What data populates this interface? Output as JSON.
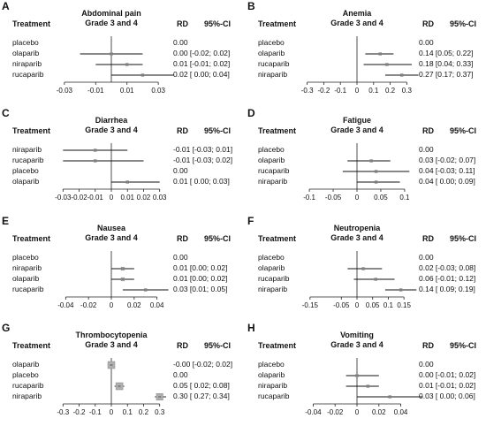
{
  "header": {
    "treatment": "Treatment",
    "rd": "RD",
    "ci": "95%-CI"
  },
  "panels": [
    {
      "letter": "A",
      "title1": "Abdominal pain",
      "title2": "Grade 3 and 4",
      "ticks": [
        "-0.03",
        "-0.01",
        "0.01",
        "0.03"
      ],
      "chart_data": {
        "type": "forest",
        "xlim": [
          -0.035,
          0.035
        ],
        "tick_values": [
          -0.03,
          -0.01,
          0.01,
          0.03
        ],
        "rows": [
          {
            "name": "placebo",
            "rd": 0.0,
            "lo": 0.0,
            "hi": 0.0,
            "text": "0.00"
          },
          {
            "name": "olaparib",
            "rd": 0.0,
            "lo": -0.02,
            "hi": 0.02,
            "text": "0.00 [-0.02; 0.02]"
          },
          {
            "name": "niraparib",
            "rd": 0.01,
            "lo": -0.01,
            "hi": 0.02,
            "text": "0.01 [-0.01; 0.02]"
          },
          {
            "name": "rucaparib",
            "rd": 0.02,
            "lo": 0.0,
            "hi": 0.04,
            "text": "0.02 [ 0.00; 0.04]"
          }
        ]
      }
    },
    {
      "letter": "B",
      "title1": "Anemia",
      "title2": "Grade 3 and 4",
      "ticks": [
        "-0.3",
        "-0.2",
        "-0.1",
        "0",
        "0.1",
        "0.2",
        "0.3"
      ],
      "chart_data": {
        "type": "forest",
        "xlim": [
          -0.33,
          0.33
        ],
        "tick_values": [
          -0.3,
          -0.2,
          -0.1,
          0,
          0.1,
          0.2,
          0.3
        ],
        "rows": [
          {
            "name": "placebo",
            "rd": 0.0,
            "lo": 0.0,
            "hi": 0.0,
            "text": "0.00"
          },
          {
            "name": "olaparib",
            "rd": 0.14,
            "lo": 0.05,
            "hi": 0.22,
            "text": "0.14 [0.05; 0.22]"
          },
          {
            "name": "rucaparib",
            "rd": 0.18,
            "lo": 0.04,
            "hi": 0.33,
            "text": "0.18 [0.04; 0.33]"
          },
          {
            "name": "niraparib",
            "rd": 0.27,
            "lo": 0.17,
            "hi": 0.37,
            "text": "0.27 [0.17; 0.37]"
          }
        ]
      }
    },
    {
      "letter": "C",
      "title1": "Diarrhea",
      "title2": "Grade 3 and 4",
      "ticks": [
        "-0.03",
        "-0.02",
        "-0.01",
        "0",
        "0.01",
        "0.02",
        "0.03"
      ],
      "chart_data": {
        "type": "forest",
        "xlim": [
          -0.034,
          0.034
        ],
        "tick_values": [
          -0.03,
          -0.02,
          -0.01,
          0,
          0.01,
          0.02,
          0.03
        ],
        "rows": [
          {
            "name": "niraparib",
            "rd": -0.01,
            "lo": -0.03,
            "hi": 0.01,
            "text": "-0.01 [-0.03; 0.01]"
          },
          {
            "name": "rucaparib",
            "rd": -0.01,
            "lo": -0.03,
            "hi": 0.02,
            "text": "-0.01 [-0.03; 0.02]"
          },
          {
            "name": "placebo",
            "rd": 0.0,
            "lo": 0.0,
            "hi": 0.0,
            "text": "0.00"
          },
          {
            "name": "olaparib",
            "rd": 0.01,
            "lo": 0.0,
            "hi": 0.03,
            "text": "0.01 [ 0.00; 0.03]"
          }
        ]
      }
    },
    {
      "letter": "D",
      "title1": "Fatigue",
      "title2": "Grade 3 and 4",
      "ticks": [
        "-0.1",
        "-0.05",
        "0",
        "0.05",
        "0.1"
      ],
      "chart_data": {
        "type": "forest",
        "xlim": [
          -0.115,
          0.115
        ],
        "tick_values": [
          -0.1,
          -0.05,
          0,
          0.05,
          0.1
        ],
        "rows": [
          {
            "name": "placebo",
            "rd": 0.0,
            "lo": 0.0,
            "hi": 0.0,
            "text": "0.00"
          },
          {
            "name": "olaparib",
            "rd": 0.03,
            "lo": -0.02,
            "hi": 0.07,
            "text": "0.03 [-0.02; 0.07]"
          },
          {
            "name": "rucaparib",
            "rd": 0.04,
            "lo": -0.03,
            "hi": 0.11,
            "text": "0.04 [-0.03; 0.11]"
          },
          {
            "name": "niraparib",
            "rd": 0.04,
            "lo": 0.0,
            "hi": 0.09,
            "text": "0.04 [ 0.00; 0.09]"
          }
        ]
      }
    },
    {
      "letter": "E",
      "title1": "Nausea",
      "title2": "Grade 3 and 4",
      "ticks": [
        "-0.04",
        "-0.02",
        "0",
        "0.02",
        "0.04"
      ],
      "chart_data": {
        "type": "forest",
        "xlim": [
          -0.048,
          0.048
        ],
        "tick_values": [
          -0.04,
          -0.02,
          0,
          0.02,
          0.04
        ],
        "rows": [
          {
            "name": "placebo",
            "rd": 0.0,
            "lo": 0.0,
            "hi": 0.0,
            "text": "0.00"
          },
          {
            "name": "niraparib",
            "rd": 0.01,
            "lo": 0.0,
            "hi": 0.02,
            "text": "0.01 [0.00; 0.02]"
          },
          {
            "name": "olaparib",
            "rd": 0.01,
            "lo": 0.0,
            "hi": 0.02,
            "text": "0.01 [0.00; 0.02]"
          },
          {
            "name": "rucaparib",
            "rd": 0.03,
            "lo": 0.01,
            "hi": 0.05,
            "text": "0.03 [0.01; 0.05]"
          }
        ]
      }
    },
    {
      "letter": "F",
      "title1": "Neutropenia",
      "title2": "Grade 3 and 4",
      "ticks": [
        "-0.15",
        "-0.05",
        "0",
        "0.05",
        "0.1",
        "0.15"
      ],
      "chart_data": {
        "type": "forest",
        "xlim": [
          -0.175,
          0.175
        ],
        "tick_values": [
          -0.15,
          -0.05,
          0,
          0.05,
          0.1,
          0.15
        ],
        "rows": [
          {
            "name": "placebo",
            "rd": 0.0,
            "lo": 0.0,
            "hi": 0.0,
            "text": "0.00"
          },
          {
            "name": "olaparib",
            "rd": 0.02,
            "lo": -0.03,
            "hi": 0.08,
            "text": "0.02 [-0.03; 0.08]"
          },
          {
            "name": "rucaparib",
            "rd": 0.06,
            "lo": -0.01,
            "hi": 0.12,
            "text": "0.06 [-0.01; 0.12]"
          },
          {
            "name": "niraparib",
            "rd": 0.14,
            "lo": 0.09,
            "hi": 0.19,
            "text": "0.14 [ 0.09; 0.19]"
          }
        ]
      }
    },
    {
      "letter": "G",
      "title1": "Thrombocytopenia",
      "title2": "Grade 3 and 4",
      "ticks": [
        "-0.3",
        "-0.2",
        "-0.1",
        "0",
        "0.1",
        "0.2",
        "0.3"
      ],
      "chart_data": {
        "type": "forest",
        "xlim": [
          -0.34,
          0.34
        ],
        "tick_values": [
          -0.3,
          -0.2,
          -0.1,
          0,
          0.1,
          0.2,
          0.3
        ],
        "rows": [
          {
            "name": "olaparib",
            "rd": -0.0,
            "lo": -0.02,
            "hi": 0.02,
            "text": "-0.00 [-0.02; 0.02]"
          },
          {
            "name": "placebo",
            "rd": 0.0,
            "lo": 0.0,
            "hi": 0.0,
            "text": "0.00"
          },
          {
            "name": "rucaparib",
            "rd": 0.05,
            "lo": 0.02,
            "hi": 0.08,
            "text": "0.05 [ 0.02; 0.08]"
          },
          {
            "name": "niraparib",
            "rd": 0.3,
            "lo": 0.27,
            "hi": 0.34,
            "text": "0.30 [ 0.27; 0.34]"
          }
        ]
      }
    },
    {
      "letter": "H",
      "title1": "Vomiting",
      "title2": "Grade 3 and 4",
      "ticks": [
        "-0.04",
        "-0.02",
        "0",
        "0.02",
        "0.04"
      ],
      "chart_data": {
        "type": "forest",
        "xlim": [
          -0.05,
          0.05
        ],
        "tick_values": [
          -0.04,
          -0.02,
          0,
          0.02,
          0.04
        ],
        "rows": [
          {
            "name": "placebo",
            "rd": 0.0,
            "lo": 0.0,
            "hi": 0.0,
            "text": "0.00"
          },
          {
            "name": "olaparib",
            "rd": 0.0,
            "lo": -0.01,
            "hi": 0.02,
            "text": "0.00 [-0.01; 0.02]"
          },
          {
            "name": "niraparib",
            "rd": 0.01,
            "lo": -0.01,
            "hi": 0.02,
            "text": "0.01 [-0.01; 0.02]"
          },
          {
            "name": "rucaparib",
            "rd": 0.03,
            "lo": 0.0,
            "hi": 0.06,
            "text": "0.03 [ 0.00; 0.06]"
          }
        ]
      }
    }
  ]
}
